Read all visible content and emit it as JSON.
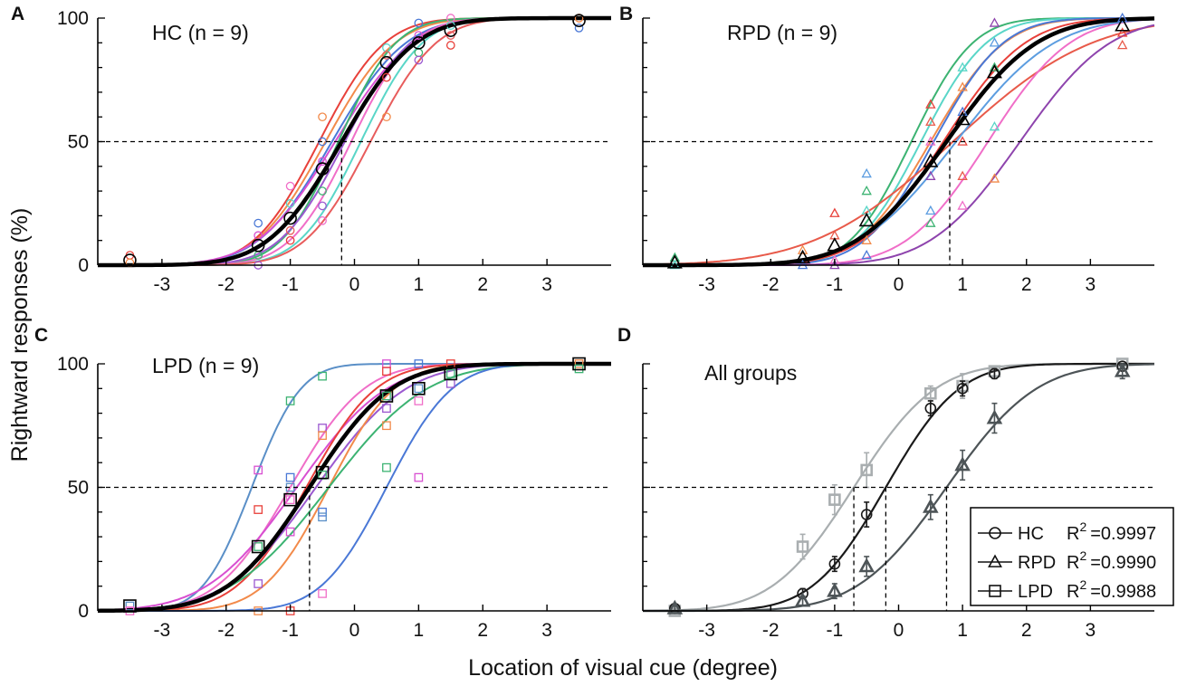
{
  "figure": {
    "ylabel": "Rightward responses (%)",
    "xlabel": "Location of visual cue (degree)"
  },
  "colors": {
    "subjects": [
      "#e8403a",
      "#f28a4a",
      "#4a78d6",
      "#d84fd1",
      "#3cb372",
      "#9b59d0",
      "#f06ec8",
      "#5ad6c8",
      "#e85c5c"
    ],
    "panelB_extra": [
      "#e85a4a",
      "#f06ec8",
      "#8e44ad",
      "#5c9de0"
    ],
    "panelC_extra": [
      "#5a8fc7",
      "#4a78d6"
    ],
    "mean": "#000000",
    "HC": "#1a1a1a",
    "RPD": "#4d5457",
    "LPD": "#a9aeb0",
    "reference": "#000000"
  },
  "chart_data": [
    {
      "type": "line",
      "panel": "A",
      "title": "HC (n = 9)",
      "xlim": [
        -4,
        4
      ],
      "ylim": [
        0,
        100
      ],
      "xticks": [
        -3,
        -2,
        -1,
        0,
        1,
        2,
        3
      ],
      "yticks": [
        0,
        50,
        100
      ],
      "marker": "circle",
      "pse": -0.2,
      "mean_curve": {
        "mu": -0.2,
        "sigma": 0.9
      },
      "mean_points": {
        "x": [
          -3.5,
          -1.5,
          -1,
          -0.5,
          0.5,
          1,
          1.5,
          3.5
        ],
        "y": [
          2,
          8,
          19,
          39,
          82,
          90,
          95,
          99
        ]
      },
      "subjects": [
        {
          "mu": -0.55,
          "sigma": 0.8
        },
        {
          "mu": -0.45,
          "sigma": 0.85
        },
        {
          "mu": -0.35,
          "sigma": 0.9
        },
        {
          "mu": -0.3,
          "sigma": 0.95
        },
        {
          "mu": -0.25,
          "sigma": 0.7
        },
        {
          "mu": -0.15,
          "sigma": 0.8
        },
        {
          "mu": -0.05,
          "sigma": 0.75
        },
        {
          "mu": 0.1,
          "sigma": 0.75
        },
        {
          "mu": 0.25,
          "sigma": 0.8
        }
      ],
      "scatter": [
        {
          "x": -3.5,
          "y": 4
        },
        {
          "x": -3.5,
          "y": 1
        },
        {
          "x": -1.5,
          "y": 17
        },
        {
          "x": -1.5,
          "y": 12
        },
        {
          "x": -1.5,
          "y": 4
        },
        {
          "x": -1.5,
          "y": 0
        },
        {
          "x": -1,
          "y": 32
        },
        {
          "x": -1,
          "y": 25
        },
        {
          "x": -1,
          "y": 14
        },
        {
          "x": -1,
          "y": 10
        },
        {
          "x": -0.5,
          "y": 60
        },
        {
          "x": -0.5,
          "y": 50
        },
        {
          "x": -0.5,
          "y": 42
        },
        {
          "x": -0.5,
          "y": 30
        },
        {
          "x": -0.5,
          "y": 24
        },
        {
          "x": -0.5,
          "y": 18
        },
        {
          "x": 0.5,
          "y": 88
        },
        {
          "x": 0.5,
          "y": 85
        },
        {
          "x": 0.5,
          "y": 76
        },
        {
          "x": 0.5,
          "y": 60
        },
        {
          "x": 1,
          "y": 98
        },
        {
          "x": 1,
          "y": 93
        },
        {
          "x": 1,
          "y": 86
        },
        {
          "x": 1,
          "y": 83
        },
        {
          "x": 1.5,
          "y": 100
        },
        {
          "x": 1.5,
          "y": 97
        },
        {
          "x": 1.5,
          "y": 93
        },
        {
          "x": 1.5,
          "y": 89
        },
        {
          "x": 3.5,
          "y": 100
        },
        {
          "x": 3.5,
          "y": 96
        }
      ]
    },
    {
      "type": "line",
      "panel": "B",
      "title": "RPD (n = 9)",
      "xlim": [
        -4,
        4
      ],
      "ylim": [
        0,
        100
      ],
      "xticks": [
        -3,
        -2,
        -1,
        0,
        1,
        2,
        3
      ],
      "marker": "triangle",
      "pse": 0.8,
      "mean_curve": {
        "mu": 0.75,
        "sigma": 1.1
      },
      "mean_points": {
        "x": [
          -3.5,
          -1.5,
          -1,
          -0.5,
          0.5,
          1,
          1.5,
          3.5
        ],
        "y": [
          1,
          3,
          8,
          18,
          42,
          59,
          78,
          97
        ]
      },
      "subjects": [
        {
          "mu": 0.2,
          "sigma": 0.75
        },
        {
          "mu": 0.35,
          "sigma": 0.8
        },
        {
          "mu": 0.5,
          "sigma": 0.9
        },
        {
          "mu": 0.55,
          "sigma": 0.85
        },
        {
          "mu": 0.7,
          "sigma": 1.0
        },
        {
          "mu": 0.85,
          "sigma": 1.7
        },
        {
          "mu": 1.4,
          "sigma": 1.0
        },
        {
          "mu": 1.9,
          "sigma": 1.1
        },
        {
          "mu": 0.9,
          "sigma": 1.2
        }
      ],
      "scatter": [
        {
          "x": -3.5,
          "y": 3
        },
        {
          "x": -3.5,
          "y": 0
        },
        {
          "x": -1.5,
          "y": 6
        },
        {
          "x": -1.5,
          "y": 0
        },
        {
          "x": -1,
          "y": 21
        },
        {
          "x": -1,
          "y": 12
        },
        {
          "x": -1,
          "y": 2
        },
        {
          "x": -1,
          "y": 0
        },
        {
          "x": -0.5,
          "y": 37
        },
        {
          "x": -0.5,
          "y": 30
        },
        {
          "x": -0.5,
          "y": 22
        },
        {
          "x": -0.5,
          "y": 10
        },
        {
          "x": -0.5,
          "y": 4
        },
        {
          "x": 0.5,
          "y": 65
        },
        {
          "x": 0.5,
          "y": 58
        },
        {
          "x": 0.5,
          "y": 50
        },
        {
          "x": 0.5,
          "y": 36
        },
        {
          "x": 0.5,
          "y": 22
        },
        {
          "x": 0.5,
          "y": 17
        },
        {
          "x": 1,
          "y": 80
        },
        {
          "x": 1,
          "y": 72
        },
        {
          "x": 1,
          "y": 62
        },
        {
          "x": 1,
          "y": 50
        },
        {
          "x": 1,
          "y": 36
        },
        {
          "x": 1,
          "y": 24
        },
        {
          "x": 1.5,
          "y": 98
        },
        {
          "x": 1.5,
          "y": 90
        },
        {
          "x": 1.5,
          "y": 80
        },
        {
          "x": 1.5,
          "y": 56
        },
        {
          "x": 1.5,
          "y": 35
        },
        {
          "x": 3.5,
          "y": 100
        },
        {
          "x": 3.5,
          "y": 94
        },
        {
          "x": 3.5,
          "y": 89
        }
      ]
    },
    {
      "type": "line",
      "panel": "C",
      "title": "LPD (n = 9)",
      "xlim": [
        -4,
        4
      ],
      "ylim": [
        0,
        100
      ],
      "xticks": [
        -3,
        -2,
        -1,
        0,
        1,
        2,
        3
      ],
      "yticks": [
        0,
        50,
        100
      ],
      "marker": "square",
      "pse": -0.7,
      "mean_curve": {
        "mu": -0.7,
        "sigma": 1.0
      },
      "mean_points": {
        "x": [
          -3.5,
          -1.5,
          -1,
          -0.5,
          0.5,
          1,
          1.5,
          3.5
        ],
        "y": [
          2,
          26,
          45,
          56,
          87,
          90,
          96,
          100
        ]
      },
      "subjects": [
        {
          "mu": -1.6,
          "sigma": 0.6
        },
        {
          "mu": -1.0,
          "sigma": 0.9
        },
        {
          "mu": -0.9,
          "sigma": 1.1
        },
        {
          "mu": -0.75,
          "sigma": 0.85
        },
        {
          "mu": -0.7,
          "sigma": 1.0
        },
        {
          "mu": -0.6,
          "sigma": 1.1
        },
        {
          "mu": -0.4,
          "sigma": 0.8
        },
        {
          "mu": -0.4,
          "sigma": 1.2
        },
        {
          "mu": 0.5,
          "sigma": 0.8
        }
      ],
      "scatter": [
        {
          "x": -3.5,
          "y": 2
        },
        {
          "x": -3.5,
          "y": 0
        },
        {
          "x": -1.5,
          "y": 57
        },
        {
          "x": -1.5,
          "y": 41
        },
        {
          "x": -1.5,
          "y": 26
        },
        {
          "x": -1.5,
          "y": 11
        },
        {
          "x": -1.5,
          "y": 0
        },
        {
          "x": -1,
          "y": 85
        },
        {
          "x": -1,
          "y": 54
        },
        {
          "x": -1,
          "y": 50
        },
        {
          "x": -1,
          "y": 45
        },
        {
          "x": -1,
          "y": 32
        },
        {
          "x": -1,
          "y": 0
        },
        {
          "x": -0.5,
          "y": 95
        },
        {
          "x": -0.5,
          "y": 74
        },
        {
          "x": -0.5,
          "y": 71
        },
        {
          "x": -0.5,
          "y": 55
        },
        {
          "x": -0.5,
          "y": 40
        },
        {
          "x": -0.5,
          "y": 38
        },
        {
          "x": -0.5,
          "y": 7
        },
        {
          "x": 0.5,
          "y": 100
        },
        {
          "x": 0.5,
          "y": 97
        },
        {
          "x": 0.5,
          "y": 87
        },
        {
          "x": 0.5,
          "y": 82
        },
        {
          "x": 0.5,
          "y": 75
        },
        {
          "x": 0.5,
          "y": 58
        },
        {
          "x": 1,
          "y": 100
        },
        {
          "x": 1,
          "y": 90
        },
        {
          "x": 1,
          "y": 85
        },
        {
          "x": 1,
          "y": 54
        },
        {
          "x": 1.5,
          "y": 100
        },
        {
          "x": 1.5,
          "y": 96
        },
        {
          "x": 1.5,
          "y": 92
        },
        {
          "x": 3.5,
          "y": 100
        },
        {
          "x": 3.5,
          "y": 98
        }
      ]
    },
    {
      "type": "line",
      "panel": "D",
      "title": "All groups",
      "xlim": [
        -4,
        4
      ],
      "ylim": [
        0,
        100
      ],
      "xticks": [
        -3,
        -2,
        -1,
        0,
        1,
        2,
        3
      ],
      "series": [
        {
          "name": "LPD",
          "r2_value": "=0.9988",
          "marker": "square",
          "mu": -0.7,
          "sigma": 1.0,
          "x": [
            -3.5,
            -1.5,
            -1,
            -0.5,
            0.5,
            1,
            1.5,
            3.5
          ],
          "y": [
            0,
            26,
            45,
            57,
            88,
            91,
            97,
            100
          ],
          "err": [
            1,
            5,
            6,
            7,
            3,
            5,
            2,
            0
          ]
        },
        {
          "name": "HC",
          "r2_value": "=0.9997",
          "marker": "circle",
          "mu": -0.2,
          "sigma": 0.9,
          "x": [
            -3.5,
            -1.5,
            -1,
            -0.5,
            0.5,
            1,
            1.5,
            3.5
          ],
          "y": [
            1,
            7,
            19,
            39,
            82,
            90,
            96,
            99
          ],
          "err": [
            1,
            2,
            3,
            5,
            3,
            3,
            2,
            1
          ]
        },
        {
          "name": "RPD",
          "r2_value": "=0.9990",
          "marker": "triangle",
          "mu": 0.75,
          "sigma": 1.1,
          "x": [
            -3.5,
            -1.5,
            -1,
            -0.5,
            0.5,
            1,
            1.5,
            3.5
          ],
          "y": [
            1,
            4,
            8,
            18,
            42,
            59,
            78,
            97
          ],
          "err": [
            1,
            2,
            3,
            4,
            5,
            6,
            6,
            3
          ]
        }
      ],
      "pse": [
        -0.7,
        -0.2,
        0.75
      ]
    }
  ],
  "legend": {
    "r2_label": "R",
    "r2_sup": "2",
    "items": [
      {
        "name": "HC",
        "r2_value": "=0.9997"
      },
      {
        "name": "RPD",
        "r2_value": "=0.9990"
      },
      {
        "name": "LPD",
        "r2_value": "=0.9988"
      }
    ]
  }
}
